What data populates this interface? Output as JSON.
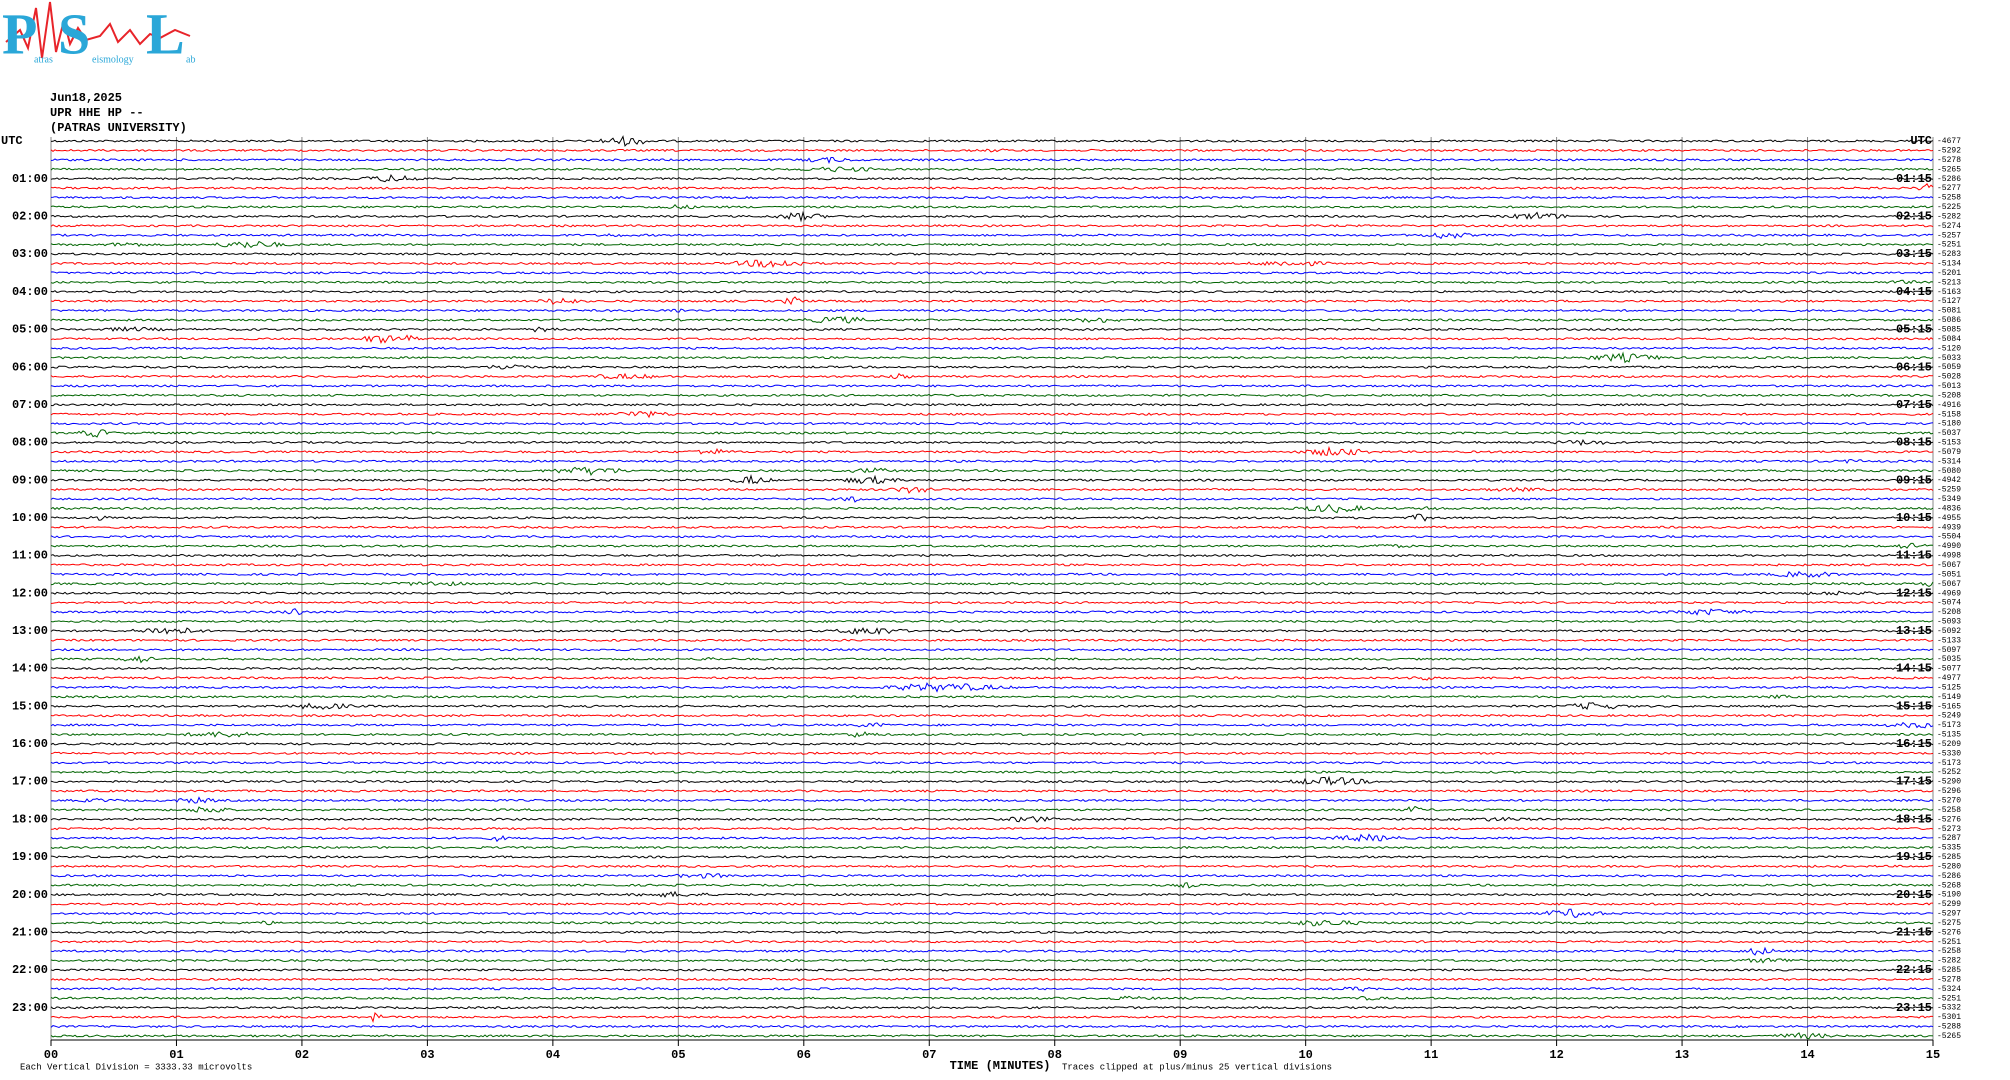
{
  "logo": {
    "letters": [
      "P",
      "S",
      "L"
    ],
    "words": [
      "atras",
      "eismology",
      "ab"
    ]
  },
  "header": {
    "date": "Jun18,2025",
    "station": "UPR HHE HP --",
    "institution": "(PATRAS UNIVERSITY)"
  },
  "left_labels": [
    "UTC",
    "01:00",
    "02:00",
    "03:00",
    "04:00",
    "05:00",
    "06:00",
    "07:00",
    "08:00",
    "09:00",
    "10:00",
    "11:00",
    "12:00",
    "13:00",
    "14:00",
    "15:00",
    "16:00",
    "17:00",
    "18:00",
    "19:00",
    "20:00",
    "21:00",
    "22:00",
    "23:00"
  ],
  "right_labels": [
    "UTC",
    "01:15",
    "02:15",
    "03:15",
    "04:15",
    "05:15",
    "06:15",
    "07:15",
    "08:15",
    "09:15",
    "10:15",
    "11:15",
    "12:15",
    "13:15",
    "14:15",
    "15:15",
    "16:15",
    "17:15",
    "18:15",
    "19:15",
    "20:15",
    "21:15",
    "22:15",
    "23:15"
  ],
  "trace_offsets": [
    "-4677",
    "-5292",
    "-5278",
    "-5265",
    "-5286",
    "-5277",
    "-5258",
    "-5225",
    "-5282",
    "-5274",
    "-5257",
    "-5251",
    "-5283",
    "-5134",
    "-5201",
    "-5213",
    "-5163",
    "-5127",
    "-5081",
    "-5086",
    "-5085",
    "-5084",
    "-5120",
    "-5033",
    "-5059",
    "-5028",
    "-5013",
    "-5208",
    "-4916",
    "-5158",
    "-5180",
    "-5037",
    "-5153",
    "-5079",
    "-5314",
    "-5080",
    "-4942",
    "-5259",
    "-5349",
    "-4836",
    "-4955",
    "-4939",
    "-5504",
    "-4990",
    "-4998",
    "-5067",
    "-5051",
    "-5067",
    "-4969",
    "-5074",
    "-5208",
    "-5093",
    "-5092",
    "-5133",
    "-5097",
    "-5035",
    "-5077",
    "-4977",
    "-5125",
    "-5149",
    "-5165",
    "-5249",
    "-5173",
    "-5135",
    "-5209",
    "-5330",
    "-5173",
    "-5252",
    "-5290",
    "-5296",
    "-5270",
    "-5258",
    "-5276",
    "-5273",
    "-5287",
    "-5335",
    "-5285",
    "-5280",
    "-5286",
    "-5268",
    "-5190",
    "-5299",
    "-5297",
    "-5275",
    "-5276",
    "-5251",
    "-5258",
    "-5282",
    "-5285",
    "-5278",
    "-5324",
    "-5251",
    "-5332",
    "-5301",
    "-5288",
    "-5265"
  ],
  "trace_colors": [
    "#000000",
    "#ff0000",
    "#0000ff",
    "#006400"
  ],
  "x_axis": {
    "ticks": [
      "00",
      "01",
      "02",
      "03",
      "04",
      "05",
      "06",
      "07",
      "08",
      "09",
      "10",
      "11",
      "12",
      "13",
      "14",
      "15"
    ],
    "title": "TIME (MINUTES)"
  },
  "footer": {
    "scale": "Each Vertical Division = 3333.33 microvolts",
    "clip": "Traces clipped at plus/minus 25 vertical divisions"
  }
}
